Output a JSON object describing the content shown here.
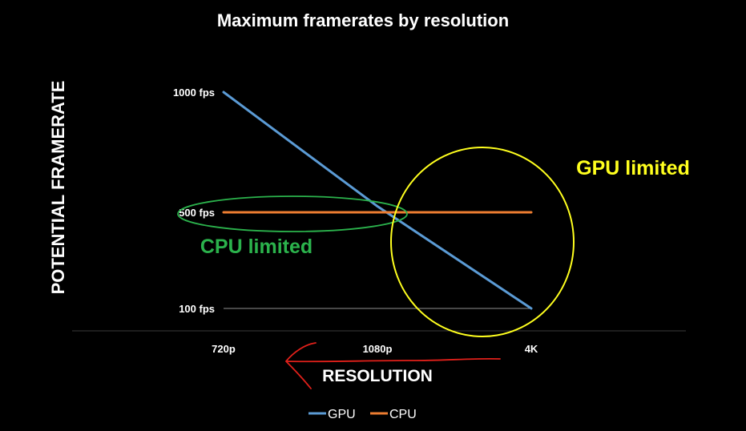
{
  "chart_data": {
    "type": "line",
    "title": "Maximum framerates by resolution",
    "xlabel": "RESOLUTION",
    "ylabel": "POTENTIAL FRAMERATE",
    "categories": [
      "720p",
      "1080p",
      "4K"
    ],
    "y_ticks": [
      {
        "value": 1000,
        "label": "1000 fps"
      },
      {
        "value": 500,
        "label": "500 fps"
      },
      {
        "value": 100,
        "label": "100 fps"
      }
    ],
    "ylim": [
      100,
      1000
    ],
    "series": [
      {
        "name": "GPU",
        "color": "#5b9bd5",
        "values": [
          1000,
          525,
          100
        ]
      },
      {
        "name": "CPU",
        "color": "#ed7d31",
        "values": [
          500,
          500,
          500
        ]
      }
    ],
    "annotations": [
      {
        "text": "GPU limited",
        "color": "#ffff1e"
      },
      {
        "text": "CPU limited",
        "color": "#2bb24c"
      }
    ],
    "arrow_color": "#e0201a",
    "grid": false,
    "legend_position": "bottom"
  }
}
